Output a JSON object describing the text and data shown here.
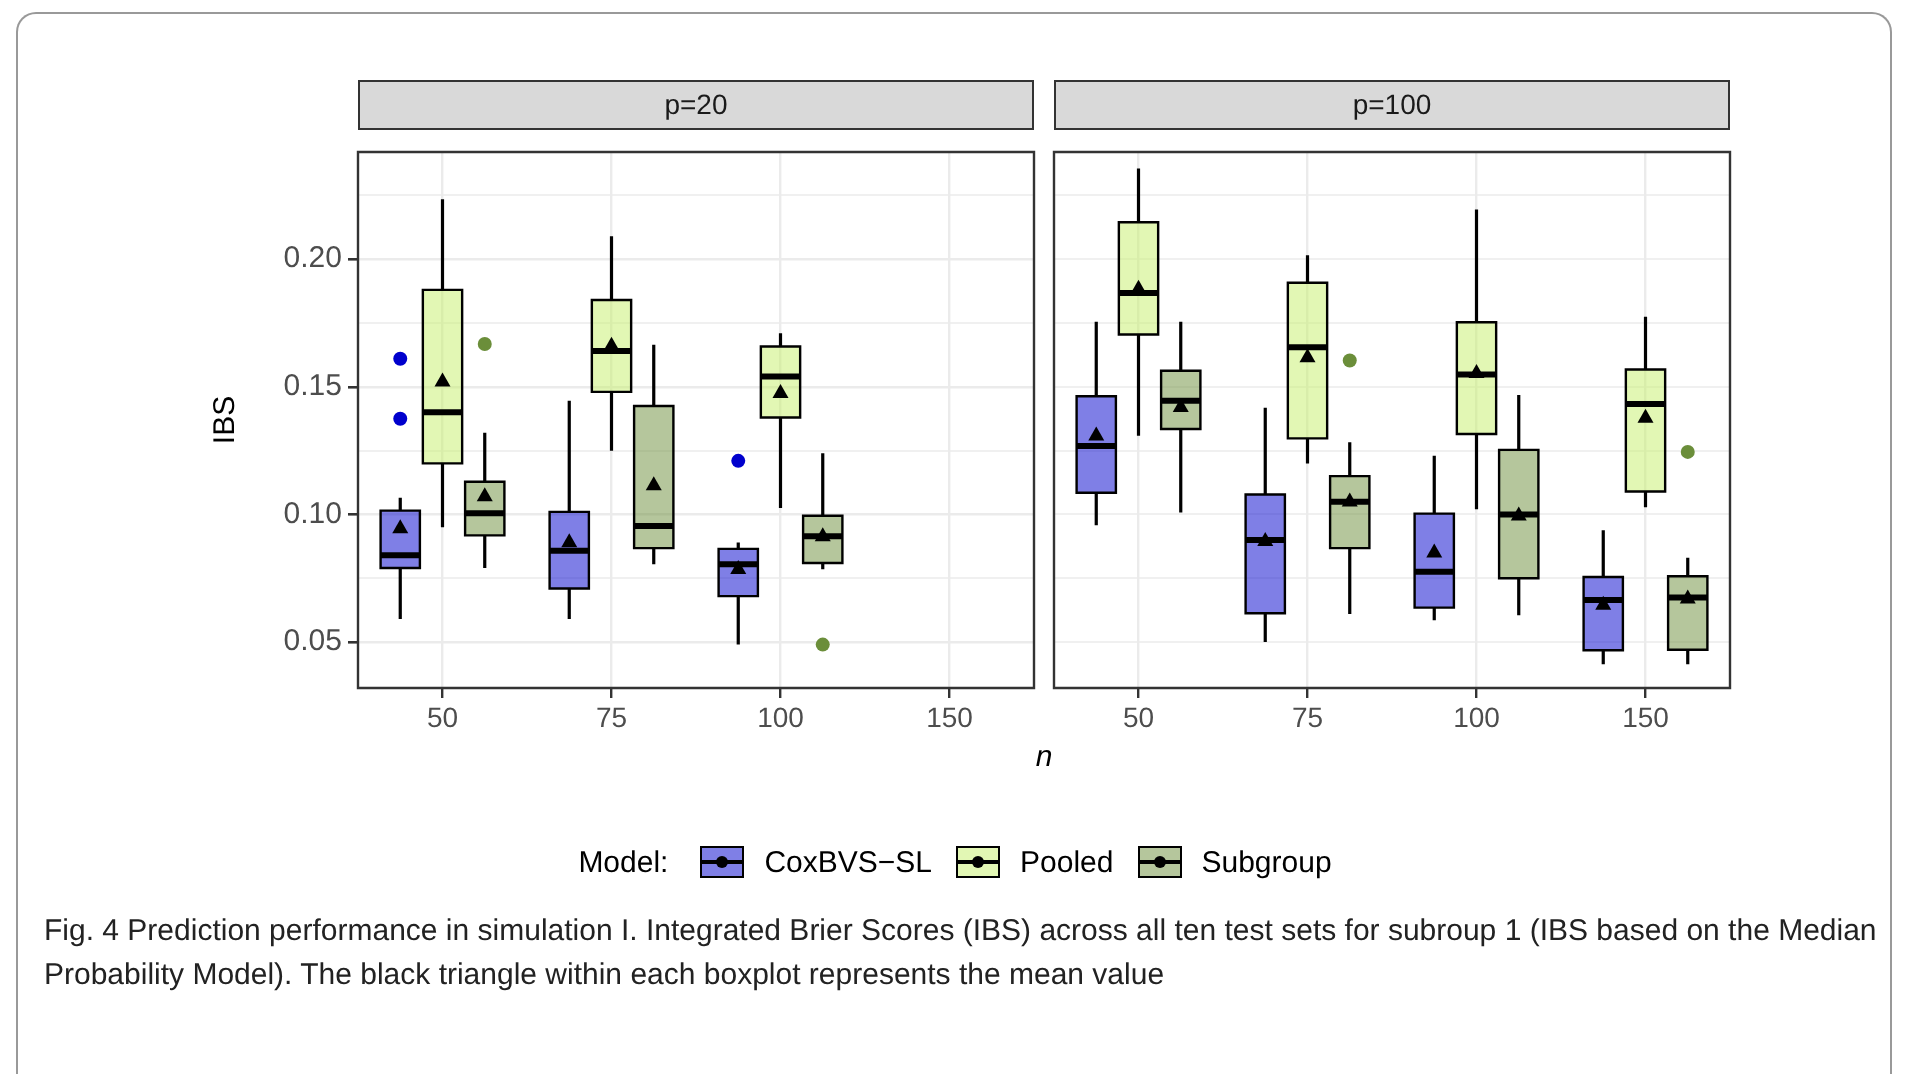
{
  "chart_data": [
    {
      "type": "box",
      "title": "p=20",
      "xlabel": "n",
      "ylabel": "IBS",
      "legend_title": "Model:",
      "legend": "bottom",
      "grid": true,
      "annotations": [
        "Fig. 4  Prediction performance in simulation I. Integrated Brier Scores (IBS) across all ten test sets for subroup 1 (IBS based on the Median Probability Model). The black triangle within each boxplot represents the mean value"
      ],
      "categories": [
        "50",
        "75",
        "100",
        "150"
      ],
      "ylim": [
        0.032,
        0.242
      ],
      "yticks": [
        0.05,
        {
          "value": 0.075,
          "label": null
        },
        {
          "value": 0.1,
          "label": "0.10"
        },
        {
          "value": 0.125,
          "label": null
        },
        0.15,
        {
          "value": 0.175,
          "label": null
        },
        {
          "value": 0.2,
          "label": "0.20"
        },
        {
          "value": 0.225,
          "label": null
        }
      ],
      "series": [
        {
          "name": "CoxBVS−SL",
          "color": "#0000cd",
          "boxes": [
            {
              "low": 0.059,
              "q1": 0.079,
              "median": 0.084,
              "q3": 0.1015,
              "high": 0.1065,
              "mean": 0.095,
              "outliers": [
                0.1375,
                0.161
              ]
            },
            {
              "low": 0.059,
              "q1": 0.071,
              "median": 0.0858,
              "q3": 0.101,
              "high": 0.1445,
              "mean": 0.0895
            },
            {
              "low": 0.049,
              "q1": 0.068,
              "median": 0.0805,
              "q3": 0.0865,
              "high": 0.089,
              "mean": 0.079,
              "outliers": [
                0.121
              ]
            },
            null
          ]
        },
        {
          "name": "Pooled",
          "color": "#c5ef6a",
          "boxes": [
            {
              "low": 0.095,
              "q1": 0.12,
              "median": 0.14,
              "q3": 0.188,
              "high": 0.2235,
              "mean": 0.1525
            },
            {
              "low": 0.125,
              "q1": 0.148,
              "median": 0.164,
              "q3": 0.184,
              "high": 0.209,
              "mean": 0.1665
            },
            {
              "low": 0.1025,
              "q1": 0.138,
              "median": 0.154,
              "q3": 0.1658,
              "high": 0.171,
              "mean": 0.148
            },
            null
          ]
        },
        {
          "name": "Subgroup",
          "color": "#6b8e3a",
          "boxes": [
            {
              "low": 0.079,
              "q1": 0.0918,
              "median": 0.1005,
              "q3": 0.1128,
              "high": 0.132,
              "mean": 0.1075,
              "outliers": [
                0.1668
              ]
            },
            {
              "low": 0.0805,
              "q1": 0.0868,
              "median": 0.0955,
              "q3": 0.1425,
              "high": 0.1665,
              "mean": 0.1118
            },
            {
              "low": 0.0785,
              "q1": 0.081,
              "median": 0.0915,
              "q3": 0.0995,
              "high": 0.124,
              "mean": 0.0918,
              "outliers": [
                0.049
              ]
            },
            null
          ]
        }
      ]
    },
    {
      "type": "box",
      "title": "p=100",
      "grid": true,
      "tick_labels": "x",
      "categories": [
        "50",
        "75",
        "100",
        "150"
      ],
      "ylim": [
        0.032,
        0.242
      ],
      "yticks": [
        {
          "value": 0.05,
          "label": null
        },
        {
          "value": 0.075,
          "label": null
        },
        {
          "value": 0.1,
          "label": null
        },
        {
          "value": 0.125,
          "label": null
        },
        {
          "value": 0.15,
          "label": null
        },
        {
          "value": 0.175,
          "label": null
        },
        {
          "value": 0.2,
          "label": null
        },
        {
          "value": 0.225,
          "label": null
        }
      ],
      "series": [
        {
          "color": "#0000cd",
          "boxes": [
            {
              "low": 0.0958,
              "q1": 0.1085,
              "median": 0.1268,
              "q3": 0.1463,
              "high": 0.1755,
              "mean": 0.1313
            },
            {
              "low": 0.05,
              "q1": 0.0613,
              "median": 0.09,
              "q3": 0.1078,
              "high": 0.1418,
              "mean": 0.09
            },
            {
              "low": 0.0585,
              "q1": 0.0635,
              "median": 0.0775,
              "q3": 0.1003,
              "high": 0.123,
              "mean": 0.0855
            },
            {
              "low": 0.0413,
              "q1": 0.0468,
              "median": 0.0665,
              "q3": 0.0755,
              "high": 0.0938,
              "mean": 0.065
            }
          ]
        },
        {
          "color": "#c5ef6a",
          "boxes": [
            {
              "low": 0.1308,
              "q1": 0.1705,
              "median": 0.1868,
              "q3": 0.2145,
              "high": 0.2355,
              "mean": 0.1888
            },
            {
              "low": 0.12,
              "q1": 0.1298,
              "median": 0.1655,
              "q3": 0.1908,
              "high": 0.2015,
              "mean": 0.162
            },
            {
              "low": 0.102,
              "q1": 0.1315,
              "median": 0.1548,
              "q3": 0.1753,
              "high": 0.2195,
              "mean": 0.1558
            },
            {
              "low": 0.1028,
              "q1": 0.109,
              "median": 0.1433,
              "q3": 0.1568,
              "high": 0.1775,
              "mean": 0.1383
            }
          ]
        },
        {
          "color": "#6b8e3a",
          "boxes": [
            {
              "low": 0.1008,
              "q1": 0.1335,
              "median": 0.1445,
              "q3": 0.1563,
              "high": 0.1755,
              "mean": 0.1425
            },
            {
              "low": 0.061,
              "q1": 0.0868,
              "median": 0.105,
              "q3": 0.115,
              "high": 0.1283,
              "mean": 0.1055,
              "outliers": [
                0.1603
              ]
            },
            {
              "low": 0.0605,
              "q1": 0.075,
              "median": 0.1,
              "q3": 0.1253,
              "high": 0.1468,
              "mean": 0.1
            },
            {
              "low": 0.0413,
              "q1": 0.047,
              "median": 0.0675,
              "q3": 0.0758,
              "high": 0.083,
              "mean": 0.0675,
              "outliers": [
                0.1245
              ]
            }
          ]
        }
      ]
    }
  ]
}
